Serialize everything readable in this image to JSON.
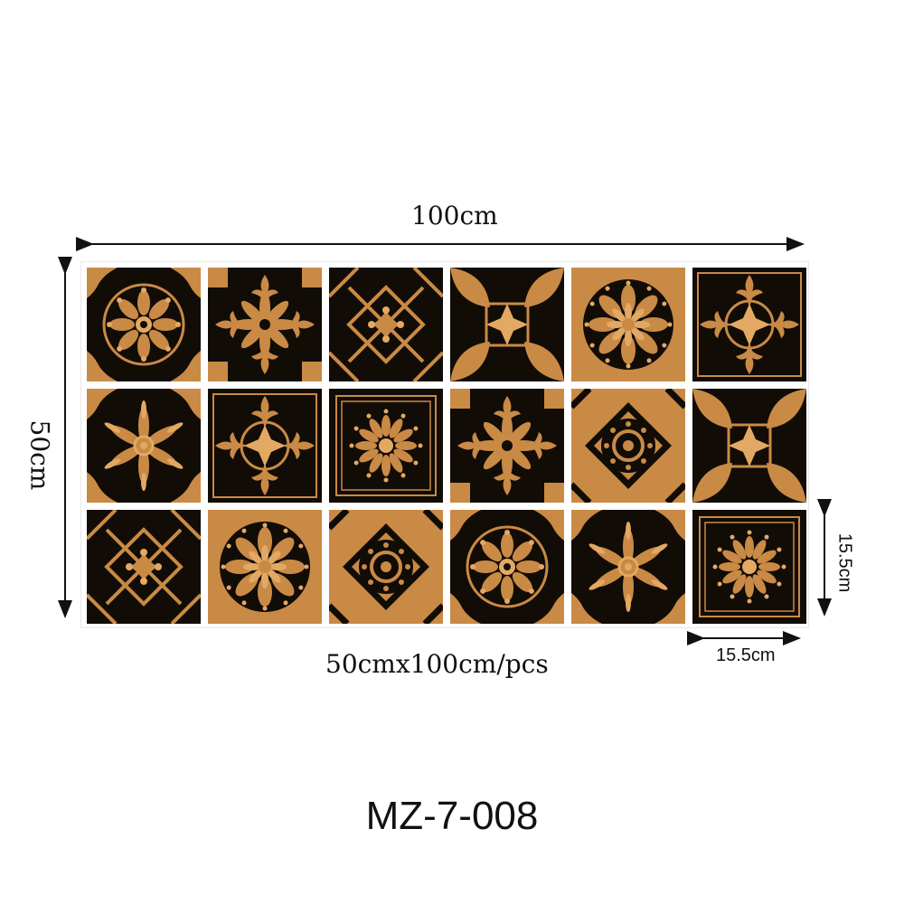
{
  "dimensions": {
    "width_label": "100cm",
    "height_label": "50cm",
    "sheet_label": "50cmx100cm/pcs",
    "tile_width_label": "15.5cm",
    "tile_height_label": "15.5cm"
  },
  "product": {
    "model": "MZ-7-008"
  },
  "colors": {
    "tile_dark": "#120c07",
    "tile_gold": "#c98a45",
    "tile_gold_light": "#e3a963",
    "arrow": "#111111"
  }
}
